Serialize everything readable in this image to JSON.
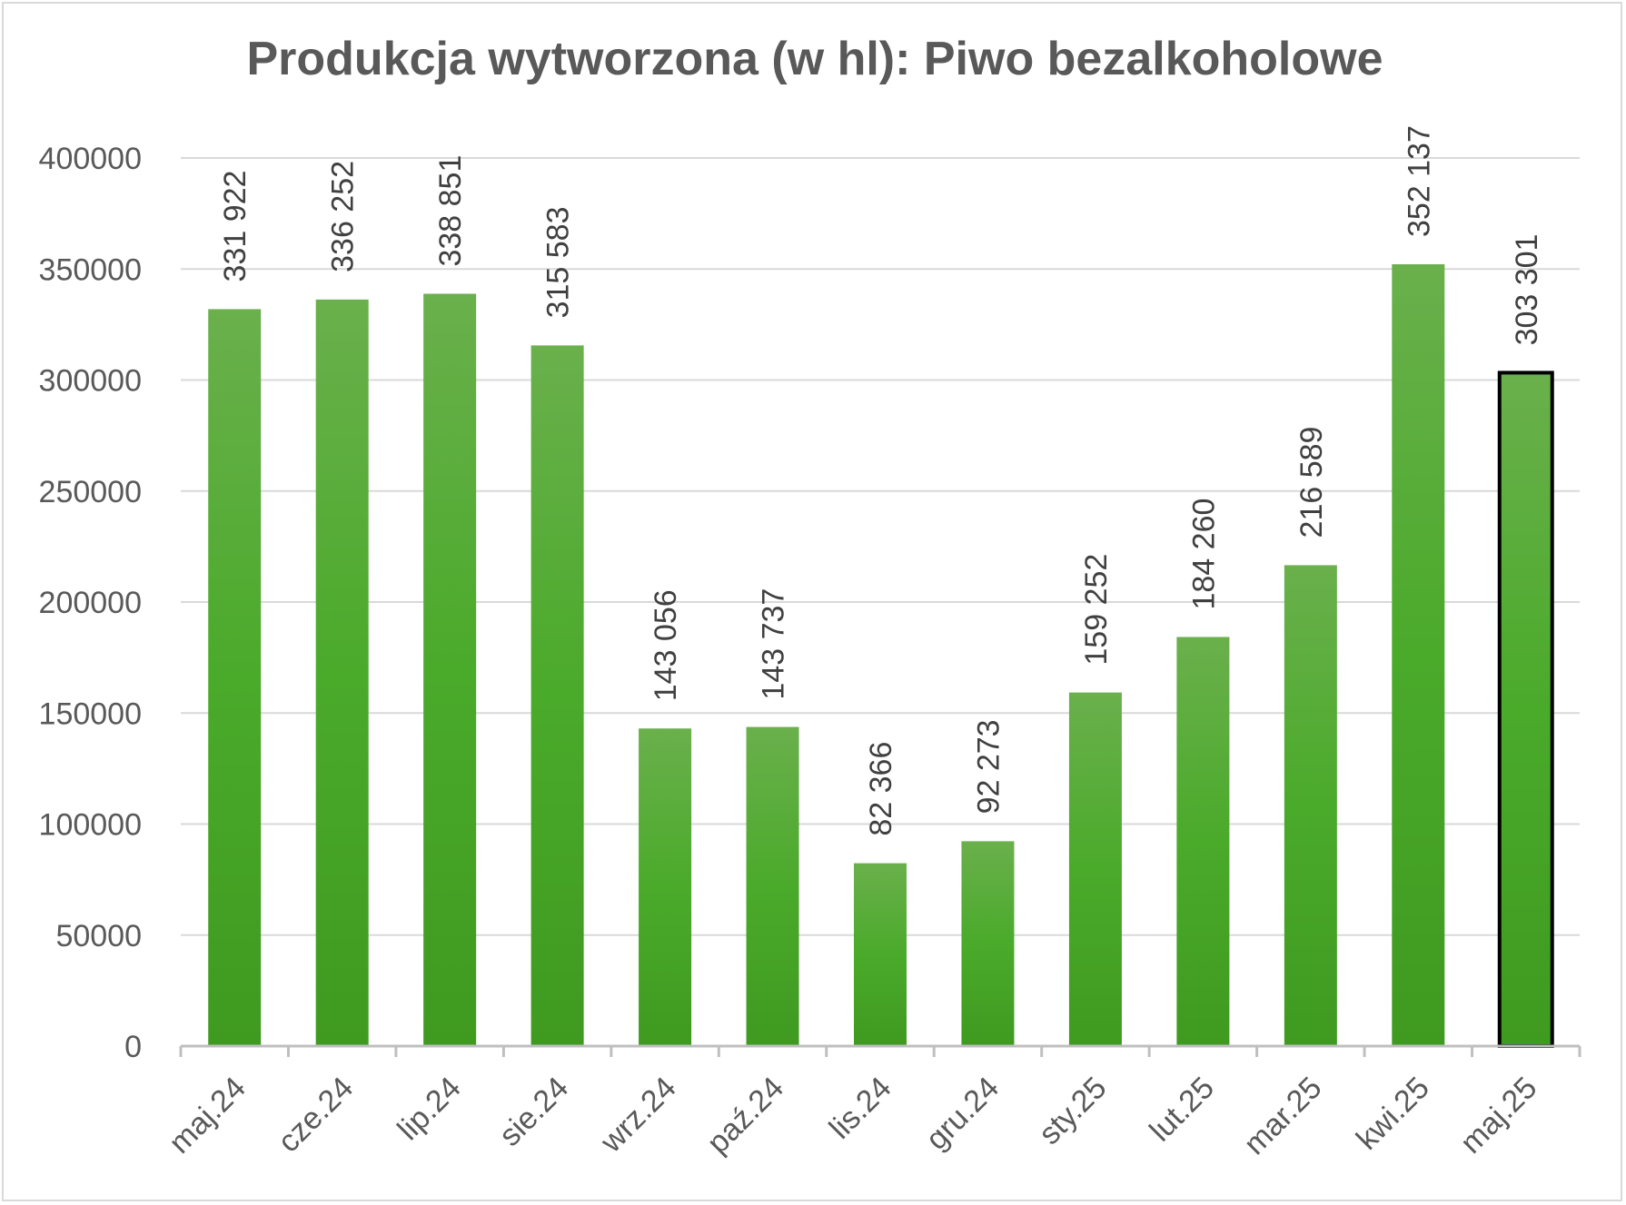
{
  "chart_data": {
    "type": "bar",
    "title": "Produkcja wytworzona (w hl): Piwo bezalkoholowe",
    "categories": [
      "maj.24",
      "cze.24",
      "lip.24",
      "sie.24",
      "wrz.24",
      "paź.24",
      "lis.24",
      "gru.24",
      "sty.25",
      "lut.25",
      "mar.25",
      "kwi.25",
      "maj.25"
    ],
    "values": [
      331922,
      336252,
      338851,
      315583,
      143056,
      143737,
      82366,
      92273,
      159252,
      184260,
      216589,
      352137,
      303301
    ],
    "data_labels": [
      "331 922",
      "336 252",
      "338 851",
      "315 583",
      "143 056",
      "143 737",
      "82 366",
      "92 273",
      "159 252",
      "184 260",
      "216 589",
      "352 137",
      "303 301"
    ],
    "yticks": [
      "0",
      "50000",
      "100000",
      "150000",
      "200000",
      "250000",
      "300000",
      "350000",
      "400000"
    ],
    "ylim": [
      0,
      400000
    ],
    "grid": true,
    "legend": "none",
    "highlighted_category": "maj.25",
    "colors": {
      "bar_top": "#6ab04c",
      "bar_bottom": "#3f9a20",
      "highlight_border": "#000000"
    }
  }
}
